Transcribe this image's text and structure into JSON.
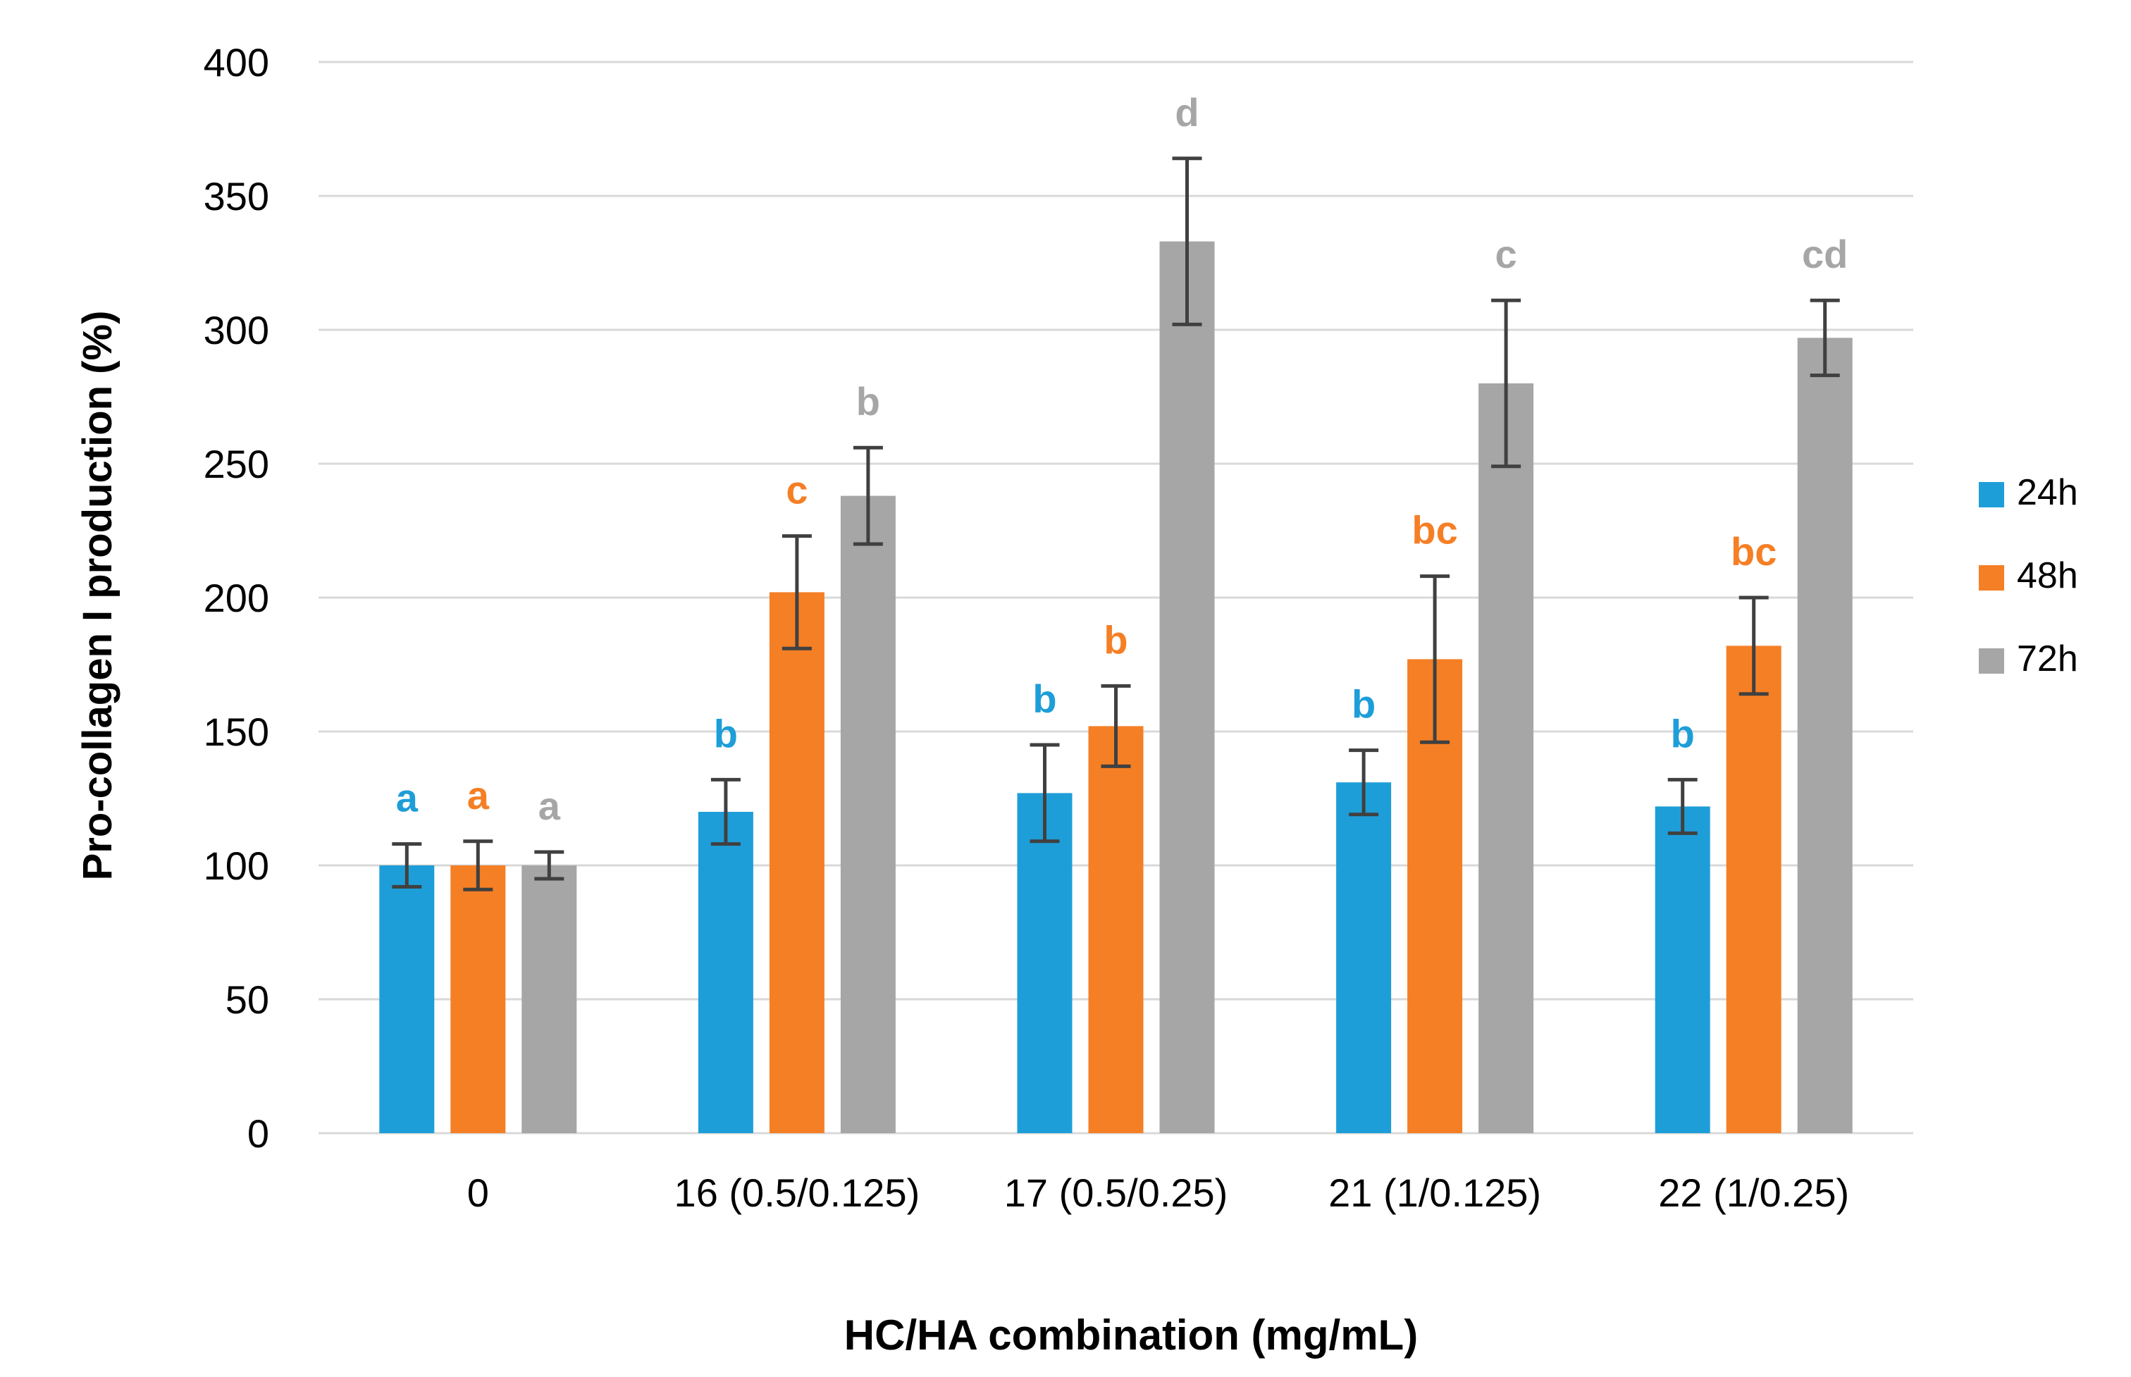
{
  "chart_data": {
    "type": "bar",
    "title": "",
    "xlabel": "HC/HA combination (mg/mL)",
    "ylabel": "Pro-collagen I production (%)",
    "ylim": [
      0,
      400
    ],
    "yticks": [
      0,
      50,
      100,
      150,
      200,
      250,
      300,
      350,
      400
    ],
    "grid": true,
    "legend_position": "right",
    "categories": [
      "0",
      "16 (0.5/0.125)",
      "17 (0.5/0.25)",
      "21 (1/0.125)",
      "22 (1/0.25)"
    ],
    "series": [
      {
        "name": "24h",
        "color": "#1E9ED8",
        "values": [
          100,
          120,
          127,
          131,
          122
        ],
        "errors": [
          8,
          12,
          18,
          12,
          10
        ],
        "letters": [
          "a",
          "b",
          "b",
          "b",
          "b"
        ]
      },
      {
        "name": "48h",
        "color": "#F57F25",
        "values": [
          100,
          202,
          152,
          177,
          182
        ],
        "errors": [
          9,
          21,
          15,
          31,
          18
        ],
        "letters": [
          "a",
          "c",
          "b",
          "bc",
          "bc"
        ]
      },
      {
        "name": "72h",
        "color": "#A6A6A6",
        "values": [
          100,
          238,
          333,
          280,
          297
        ],
        "errors": [
          5,
          18,
          31,
          31,
          14
        ],
        "letters": [
          "a",
          "b",
          "d",
          "c",
          "cd"
        ]
      }
    ]
  }
}
